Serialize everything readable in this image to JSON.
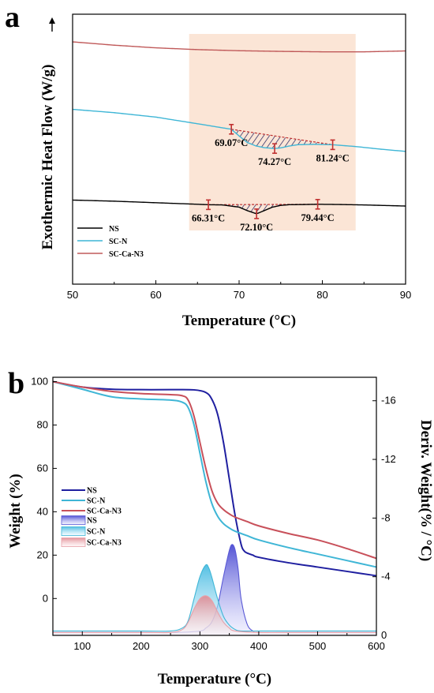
{
  "chart_data": [
    {
      "panel_label": "a",
      "type": "line",
      "xlabel": "Temperature (°C)",
      "ylabel": "Exothermic Heat Flow (W/g)",
      "xlim": [
        50,
        90
      ],
      "xticks": [
        50,
        60,
        70,
        80,
        90
      ],
      "highlight_region": {
        "x": [
          64,
          84
        ],
        "color": "#fbe5d6"
      },
      "legend_position": "bottom-left",
      "series": [
        {
          "name": "NS",
          "color": "#000000",
          "x": [
            50,
            55,
            60,
            65,
            66.31,
            68,
            70,
            71,
            72.1,
            73,
            74,
            75,
            76,
            78,
            79.44,
            82,
            85,
            88,
            90
          ],
          "y": [
            0.0,
            -0.05,
            -0.12,
            -0.19,
            -0.21,
            -0.22,
            -0.32,
            -0.48,
            -0.62,
            -0.48,
            -0.32,
            -0.24,
            -0.21,
            -0.2,
            -0.19,
            -0.2,
            -0.22,
            -0.25,
            -0.27
          ]
        },
        {
          "name": "SC-N",
          "color": "#3fb6d6",
          "x": [
            50,
            55,
            60,
            65,
            69.07,
            70,
            71,
            72,
            73,
            74.27,
            75,
            76,
            77,
            79,
            81.24,
            84,
            87,
            90
          ],
          "y": [
            4.1,
            3.95,
            3.75,
            3.45,
            3.2,
            2.9,
            2.6,
            2.45,
            2.37,
            2.33,
            2.36,
            2.44,
            2.5,
            2.52,
            2.5,
            2.42,
            2.3,
            2.2
          ]
        },
        {
          "name": "SC-Ca-N3",
          "color": "#c05a5a",
          "x": [
            50,
            55,
            60,
            65,
            70,
            75,
            80,
            85,
            90
          ],
          "y": [
            7.15,
            7.0,
            6.88,
            6.8,
            6.75,
            6.72,
            6.7,
            6.7,
            6.74
          ]
        }
      ],
      "annotations": [
        {
          "series": "SC-N",
          "points": [
            {
              "x": 69.07,
              "label": "69.07°C"
            },
            {
              "x": 74.27,
              "label": "74.27°C"
            },
            {
              "x": 81.24,
              "label": "81.24°C"
            }
          ]
        },
        {
          "series": "NS",
          "points": [
            {
              "x": 66.31,
              "label": "66.31°C"
            },
            {
              "x": 72.1,
              "label": "72.10°C"
            },
            {
              "x": 79.44,
              "label": "79.44°C"
            }
          ]
        }
      ]
    },
    {
      "panel_label": "b",
      "type": "line",
      "xlabel": "Temperature (°C)",
      "ylabel": "Weight (%)",
      "y2label": "Deriv. Weight(% / °C)",
      "xlim": [
        50,
        600
      ],
      "xticks": [
        100,
        200,
        300,
        400,
        500,
        600
      ],
      "ylim": [
        -17,
        102
      ],
      "yticks": [
        0,
        20,
        40,
        60,
        80,
        100
      ],
      "y2lim": [
        0,
        -17.6
      ],
      "y2ticks": [
        0,
        -4,
        -8,
        -12,
        -16
      ],
      "legend_position": "middle-left",
      "series": [
        {
          "name": "NS",
          "color": "#1f1fa0",
          "axis": "left",
          "x": [
            50,
            100,
            150,
            200,
            250,
            290,
            310,
            320,
            330,
            340,
            350,
            360,
            370,
            375,
            380,
            390,
            400,
            450,
            500,
            550,
            600
          ],
          "y": [
            100,
            97.5,
            96.5,
            96.3,
            96.3,
            96.2,
            95,
            92,
            85,
            72,
            55,
            38,
            25,
            22,
            21,
            20,
            19,
            16.5,
            14.5,
            12.5,
            10.5
          ]
        },
        {
          "name": "SC-N",
          "color": "#3fb6d6",
          "axis": "left",
          "x": [
            50,
            100,
            150,
            200,
            250,
            270,
            280,
            290,
            300,
            310,
            320,
            330,
            340,
            350,
            360,
            380,
            400,
            450,
            500,
            550,
            600
          ],
          "y": [
            100,
            96.5,
            93,
            92,
            91.5,
            90.5,
            88,
            80,
            67,
            54,
            44,
            38,
            34.5,
            32.5,
            31,
            29,
            27,
            23.5,
            20.5,
            17.5,
            14.5
          ]
        },
        {
          "name": "SC-Ca-N3",
          "color": "#c8505a",
          "axis": "left",
          "x": [
            50,
            100,
            150,
            200,
            250,
            270,
            280,
            290,
            300,
            310,
            320,
            330,
            340,
            350,
            360,
            380,
            400,
            450,
            500,
            550,
            600
          ],
          "y": [
            100,
            97.5,
            95.5,
            94.5,
            94,
            93.5,
            91.5,
            84,
            72,
            60,
            50,
            44,
            41,
            39,
            37.5,
            35.5,
            33.5,
            30,
            27,
            23,
            18.5
          ]
        },
        {
          "name": "NS",
          "color": "#5a5ad6",
          "axis": "right",
          "fill": true,
          "x": [
            50,
            200,
            260,
            300,
            310,
            320,
            330,
            340,
            350,
            355,
            360,
            365,
            370,
            380,
            390,
            400,
            450,
            600
          ],
          "y": [
            -0.2,
            -0.2,
            -0.2,
            -0.3,
            -0.5,
            -0.9,
            -2.0,
            -4.0,
            -5.8,
            -6.2,
            -5.8,
            -4.5,
            -2.5,
            -0.8,
            -0.3,
            -0.2,
            -0.2,
            -0.2
          ]
        },
        {
          "name": "SC-N",
          "color": "#3fb6d6",
          "axis": "right",
          "fill": true,
          "x": [
            50,
            200,
            250,
            270,
            280,
            290,
            300,
            310,
            315,
            320,
            330,
            340,
            350,
            360,
            370,
            400,
            450,
            600
          ],
          "y": [
            -0.3,
            -0.3,
            -0.3,
            -0.5,
            -1.0,
            -2.5,
            -4.0,
            -4.8,
            -4.6,
            -4.0,
            -2.5,
            -1.3,
            -0.7,
            -0.4,
            -0.3,
            -0.3,
            -0.3,
            -0.3
          ]
        },
        {
          "name": "SC-Ca-N3",
          "color": "#e8a0a8",
          "axis": "right",
          "fill": true,
          "x": [
            50,
            200,
            250,
            270,
            280,
            290,
            300,
            310,
            320,
            330,
            340,
            350,
            360,
            400,
            450,
            600
          ],
          "y": [
            -0.2,
            -0.2,
            -0.2,
            -0.4,
            -0.9,
            -1.8,
            -2.5,
            -2.7,
            -2.4,
            -1.6,
            -0.9,
            -0.5,
            -0.3,
            -0.2,
            -0.2,
            -0.2
          ]
        }
      ]
    }
  ]
}
